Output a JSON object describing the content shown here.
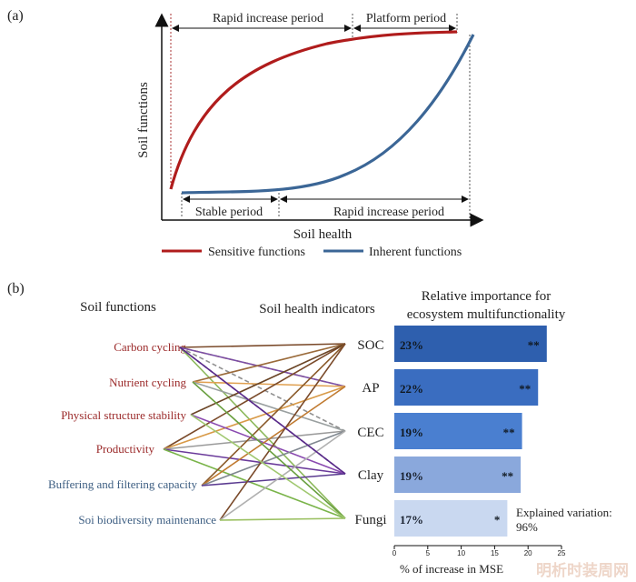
{
  "panel_a": {
    "label": "(a)",
    "y_axis_label": "Soil functions",
    "x_axis_label": "Soil health",
    "top_periods": [
      "Rapid increase period",
      "Platform period"
    ],
    "bottom_periods": [
      "Stable period",
      "Rapid increase period"
    ],
    "legend": [
      {
        "name": "Sensitive functions",
        "color": "#b01c1c"
      },
      {
        "name": "Inherent functions",
        "color": "#3b6696"
      }
    ]
  },
  "panel_b": {
    "label": "(b)",
    "col1_header": "Soil functions",
    "col2_header": "Soil health indicators",
    "col3_header_line1": "Relative importance for",
    "col3_header_line2": "ecosystem multifunctionality",
    "functions": [
      {
        "name": "Carbon cycling",
        "color": "#9b2a2a"
      },
      {
        "name": "Nutrient cycling",
        "color": "#9b2a2a"
      },
      {
        "name": "Physical structure stability",
        "color": "#9b2a2a"
      },
      {
        "name": "Productivity",
        "color": "#9b2a2a"
      },
      {
        "name": "Buffering and filtering capacity",
        "color": "#3d5e82"
      },
      {
        "name": "Soi biodiversity maintenance",
        "color": "#3d5e82"
      }
    ],
    "indicators": [
      "SOC",
      "AP",
      "CEC",
      "Clay",
      "Fungi"
    ],
    "explained_variation_label": "Explained variation:",
    "explained_variation_value": "96%",
    "watermark": "明析时装周网"
  },
  "chart_data": {
    "type": "bar",
    "orientation": "horizontal",
    "categories": [
      "SOC",
      "AP",
      "CEC",
      "Clay",
      "Fungi"
    ],
    "values": [
      22.8,
      21.5,
      19.1,
      18.9,
      16.9
    ],
    "bar_labels": [
      "23%",
      "22%",
      "19%",
      "19%",
      "17%"
    ],
    "significance": [
      "**",
      "**",
      "**",
      "**",
      "*"
    ],
    "bar_colors": [
      "#2e5fae",
      "#3a6dc0",
      "#4a7fd0",
      "#8aa8dc",
      "#c9d8f0"
    ],
    "xlabel": "% of increase in MSE",
    "xlim": [
      0,
      25
    ],
    "xticks": [
      0,
      5,
      10,
      15,
      20,
      25
    ]
  }
}
